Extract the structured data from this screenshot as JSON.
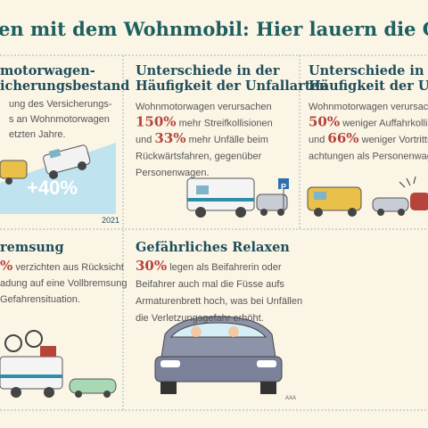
{
  "header": {
    "title": "en mit dem Wohnmobil: Hier lauern die Gefah"
  },
  "panels": [
    {
      "heading": [
        "motorwagen-",
        "icherungsbestand"
      ],
      "body": [
        "ung des Versicherungs-",
        "s an Wohnmotorwagen",
        "etzten Jahre."
      ],
      "figure": "+40%",
      "year": "2021"
    },
    {
      "heading": [
        "Unterschiede in der",
        "Häufigkeit der Unfallarten"
      ],
      "body": [
        {
          "text": "Wohnmotorwagen verursachen"
        },
        {
          "em": "150%",
          "text": " mehr Streifkollisionen"
        },
        {
          "pre": "und ",
          "em": "33%",
          "text": " mehr Unfälle beim"
        },
        {
          "text": "Rückwärtsfahren, gegenüber"
        },
        {
          "text": "Personenwagen."
        }
      ],
      "sign": "P"
    },
    {
      "heading": [
        "Unterschiede in der",
        "Häufigkeit der Unfall"
      ],
      "body": [
        {
          "text": "Wohnmotorwagen verursache"
        },
        {
          "em": "50%",
          "text": " weniger Auffahrkollisi"
        },
        {
          "pre": "und ",
          "em": "66%",
          "text": " weniger Vortrittsm"
        },
        {
          "text": "achtungen als Personenwagen"
        }
      ]
    },
    {
      "heading": [
        "remsung"
      ],
      "body": [
        {
          "em": "%",
          "text": " verzichten aus Rücksicht"
        },
        {
          "text": "adung auf eine Vollbremsung"
        },
        {
          "text": "Gefahrensituation."
        }
      ]
    },
    {
      "heading": [
        "Gefährliches Relaxen"
      ],
      "body": [
        {
          "em": "30%",
          "text": " legen als Beifahrerin oder"
        },
        {
          "text": "Beifahrer auch mal die Füsse aufs"
        },
        {
          "text": "Armaturenbrett hoch, was bei Unfällen"
        },
        {
          "text": "die Verletzungsgefahr erhöht."
        }
      ],
      "credit": "AXA"
    }
  ]
}
